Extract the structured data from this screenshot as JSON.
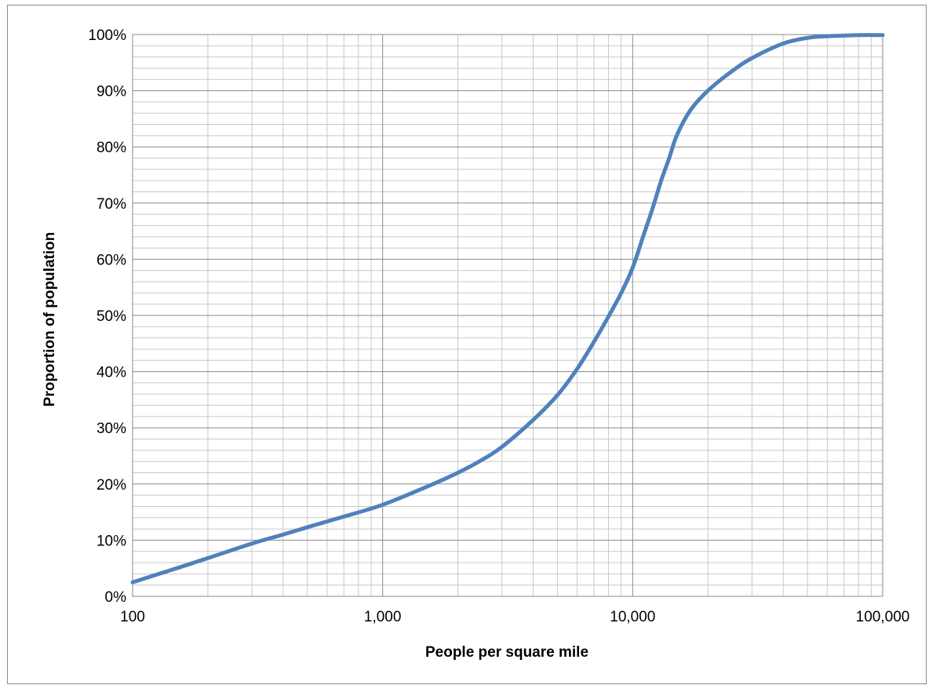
{
  "chart_data": {
    "type": "line",
    "title": "",
    "xlabel": "People per square mile",
    "ylabel": "Proportion of population",
    "x_scale": "log",
    "xlim": [
      100,
      100000
    ],
    "ylim": [
      0,
      100
    ],
    "x_ticks": [
      {
        "value": 100,
        "label": "100"
      },
      {
        "value": 1000,
        "label": "1,000"
      },
      {
        "value": 10000,
        "label": "10,000"
      },
      {
        "value": 100000,
        "label": "100,000"
      }
    ],
    "y_ticks": [
      {
        "value": 0,
        "label": "0%"
      },
      {
        "value": 10,
        "label": "10%"
      },
      {
        "value": 20,
        "label": "20%"
      },
      {
        "value": 30,
        "label": "30%"
      },
      {
        "value": 40,
        "label": "40%"
      },
      {
        "value": 50,
        "label": "50%"
      },
      {
        "value": 60,
        "label": "60%"
      },
      {
        "value": 70,
        "label": "70%"
      },
      {
        "value": 80,
        "label": "80%"
      },
      {
        "value": 90,
        "label": "90%"
      },
      {
        "value": 100,
        "label": "100%"
      }
    ],
    "grid": {
      "x_major": true,
      "x_minor": true,
      "y_major": true,
      "y_minor": true,
      "y_minor_step": 2
    },
    "legend": "none",
    "series": [
      {
        "color": "#4f81bd",
        "x": [
          100,
          150,
          200,
          300,
          400,
          500,
          700,
          1000,
          1500,
          2000,
          2500,
          3000,
          4000,
          5000,
          6000,
          7000,
          8000,
          9000,
          10000,
          11000,
          12000,
          13000,
          14000,
          15000,
          17000,
          20000,
          25000,
          30000,
          40000,
          50000,
          60000,
          70000,
          80000,
          100000
        ],
        "y": [
          2.5,
          5.0,
          6.8,
          9.4,
          11.0,
          12.3,
          14.2,
          16.3,
          19.5,
          22.0,
          24.3,
          26.6,
          31.4,
          35.8,
          40.5,
          45.3,
          49.8,
          54.0,
          58.5,
          64.0,
          69.0,
          74.0,
          78.0,
          82.0,
          86.5,
          90.0,
          93.5,
          95.8,
          98.4,
          99.4,
          99.7,
          99.8,
          99.9,
          99.9
        ]
      }
    ]
  }
}
